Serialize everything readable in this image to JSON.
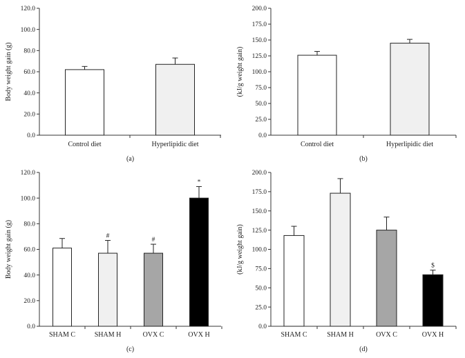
{
  "chart_data": [
    {
      "panel": "(a)",
      "type": "bar",
      "ylabel": "Body weight gain (g)",
      "xlabel": "",
      "ylim": [
        0,
        120
      ],
      "yticks": [
        "0.0",
        "20.0",
        "40.0",
        "60.0",
        "80.0",
        "100.0",
        "120.0"
      ],
      "categories": [
        "Control diet",
        "Hyperlipidic diet"
      ],
      "values": [
        62,
        67
      ],
      "errors": [
        3,
        6
      ],
      "annotations": [
        "",
        ""
      ],
      "colors": [
        "#ffffff",
        "#f0f0f0"
      ]
    },
    {
      "panel": "(b)",
      "type": "bar",
      "ylabel": "(kJ/g weight gain)",
      "xlabel": "",
      "ylim": [
        0,
        200
      ],
      "yticks": [
        "0.0",
        "25.0",
        "50.0",
        "75.0",
        "100.0",
        "125.0",
        "150.0",
        "175.0",
        "200.0"
      ],
      "categories": [
        "Control diet",
        "Hyperlipidic diet"
      ],
      "values": [
        126,
        145
      ],
      "errors": [
        6,
        6
      ],
      "annotations": [
        "",
        ""
      ],
      "colors": [
        "#ffffff",
        "#f0f0f0"
      ]
    },
    {
      "panel": "(c)",
      "type": "bar",
      "ylabel": "Body weight gain (g)",
      "xlabel": "",
      "ylim": [
        0,
        120
      ],
      "yticks": [
        "0.0",
        "20.0",
        "40.0",
        "60.0",
        "80.0",
        "100.0",
        "120.0"
      ],
      "categories": [
        "SHAM C",
        "SHAM H",
        "OVX C",
        "OVX H"
      ],
      "values": [
        61,
        57,
        57,
        100
      ],
      "errors": [
        7.5,
        10,
        7,
        9
      ],
      "annotations": [
        "",
        "#",
        "#",
        "*"
      ],
      "colors": [
        "#ffffff",
        "#f0f0f0",
        "#a6a6a6",
        "#000000"
      ]
    },
    {
      "panel": "(d)",
      "type": "bar",
      "ylabel": "(kJ/g weight gain)",
      "xlabel": "",
      "ylim": [
        0,
        200
      ],
      "yticks": [
        "0.0",
        "25.0",
        "50.0",
        "75.0",
        "100.0",
        "125.0",
        "150.0",
        "175.0",
        "200.0"
      ],
      "categories": [
        "SHAM C",
        "SHAM H",
        "OVX C",
        "OVX H"
      ],
      "values": [
        118,
        173,
        125,
        67
      ],
      "errors": [
        12,
        19,
        17,
        6
      ],
      "annotations": [
        "",
        "",
        "",
        "$"
      ],
      "colors": [
        "#ffffff",
        "#f0f0f0",
        "#a6a6a6",
        "#000000"
      ]
    }
  ]
}
